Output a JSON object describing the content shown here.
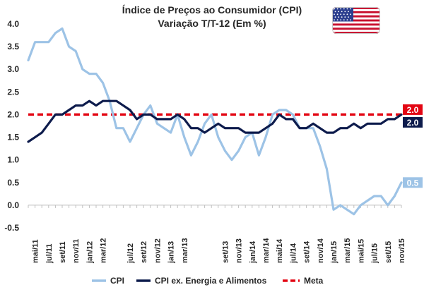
{
  "chart_data": {
    "type": "line",
    "title": [
      "Índice de Preços ao Consumidor (CPI)",
      "Variação T/T-12 (Em %)"
    ],
    "ylim": [
      -0.5,
      4.0
    ],
    "yticks": [
      "4.0",
      "3.5",
      "3.0",
      "2.5",
      "2.0",
      "1.5",
      "1.0",
      "0.5",
      "0.0",
      "-0.5"
    ],
    "x": [
      "abr/11",
      "mai/11",
      "jun/11",
      "jul/11",
      "ago/11",
      "set/11",
      "out/11",
      "nov/11",
      "dez/11",
      "jan/12",
      "fev/12",
      "mar/12",
      "abr/12",
      "mai/12",
      "jun/12",
      "jul/12",
      "ago/12",
      "set/12",
      "out/12",
      "nov/12",
      "dez/12",
      "jan/13",
      "fev/13",
      "mar/13",
      "abr/13",
      "mai/13",
      "jun/13",
      "jul/13",
      "ago/13",
      "set/13",
      "out/13",
      "nov/13",
      "dez/13",
      "jan/14",
      "fev/14",
      "mar/14",
      "abr/14",
      "mai/14",
      "jun/14",
      "jul/14",
      "ago/14",
      "set/14",
      "out/14",
      "nov/14",
      "dez/14",
      "jan/15",
      "fev/15",
      "mar/15",
      "abr/15",
      "mai/15",
      "jun/15",
      "jul/15",
      "ago/15",
      "set/15",
      "out/15",
      "nov/15"
    ],
    "xtick_labels": [
      "mai/11",
      "jul/11",
      "set/11",
      "nov/11",
      "jan/12",
      "mar/12",
      "jul/12",
      "set/12",
      "nov/12",
      "jan/13",
      "mar/13",
      "set/13",
      "nov/13",
      "jan/14",
      "mar/14",
      "mai/14",
      "jul/14",
      "set/14",
      "nov/14",
      "jan/15",
      "mar/15",
      "mai/15",
      "jul/15",
      "set/15",
      "nov/15"
    ],
    "series": [
      {
        "name": "CPI",
        "color": "#9dc3e6",
        "values": [
          3.2,
          3.6,
          3.6,
          3.6,
          3.8,
          3.9,
          3.5,
          3.4,
          3.0,
          2.9,
          2.9,
          2.7,
          2.3,
          1.7,
          1.7,
          1.4,
          1.7,
          2.0,
          2.2,
          1.8,
          1.7,
          1.6,
          2.0,
          1.5,
          1.1,
          1.4,
          1.8,
          2.0,
          1.5,
          1.2,
          1.0,
          1.2,
          1.5,
          1.6,
          1.1,
          1.5,
          2.0,
          2.1,
          2.1,
          2.0,
          1.7,
          1.7,
          1.7,
          1.3,
          0.8,
          -0.1,
          0.0,
          -0.1,
          -0.2,
          0.0,
          0.1,
          0.2,
          0.2,
          0.0,
          0.2,
          0.5
        ]
      },
      {
        "name": "CPI ex. Energia e Alimentos",
        "color": "#0d1b4c",
        "values": [
          1.4,
          1.5,
          1.6,
          1.8,
          2.0,
          2.0,
          2.1,
          2.2,
          2.2,
          2.3,
          2.2,
          2.3,
          2.3,
          2.3,
          2.2,
          2.1,
          1.9,
          2.0,
          2.0,
          1.9,
          1.9,
          1.9,
          2.0,
          1.9,
          1.7,
          1.7,
          1.6,
          1.7,
          1.8,
          1.7,
          1.7,
          1.7,
          1.6,
          1.6,
          1.6,
          1.7,
          1.8,
          2.0,
          1.9,
          1.9,
          1.7,
          1.7,
          1.8,
          1.7,
          1.6,
          1.6,
          1.7,
          1.7,
          1.8,
          1.7,
          1.8,
          1.8,
          1.8,
          1.9,
          1.9,
          2.0
        ]
      },
      {
        "name": "Meta",
        "color": "#e30613",
        "values": "constant",
        "value": 2.0
      }
    ],
    "end_labels": [
      {
        "series": "Meta",
        "text": "2.0",
        "color": "#e30613"
      },
      {
        "series": "CPI ex. Energia e Alimentos",
        "text": "2.0",
        "color": "#0d1b4c"
      },
      {
        "series": "CPI",
        "text": "0.5",
        "color": "#9dc3e6"
      }
    ],
    "legend": {
      "position": "bottom",
      "entries": [
        "CPI",
        "CPI ex. Energia e Alimentos",
        "Meta"
      ]
    },
    "flag_icon": "us-flag-icon"
  }
}
